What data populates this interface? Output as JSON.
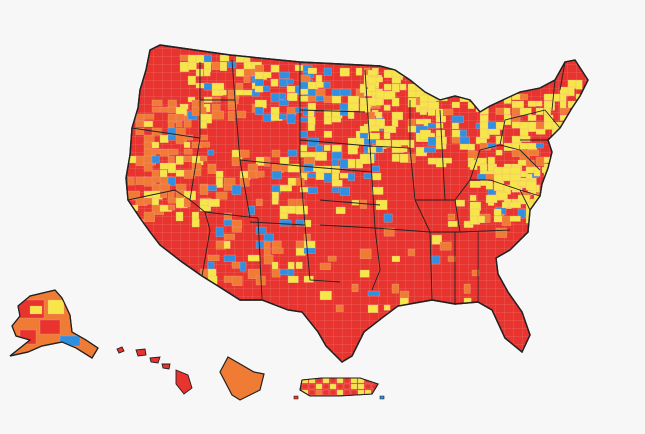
{
  "map": {
    "colors": {
      "background": "#f7f7f7",
      "high": "#e8332e",
      "substantial": "#f07b35",
      "moderate": "#f7e64a",
      "low": "#2f8fe0",
      "border": "#222222",
      "county_line": "#f4a09a"
    }
  }
}
